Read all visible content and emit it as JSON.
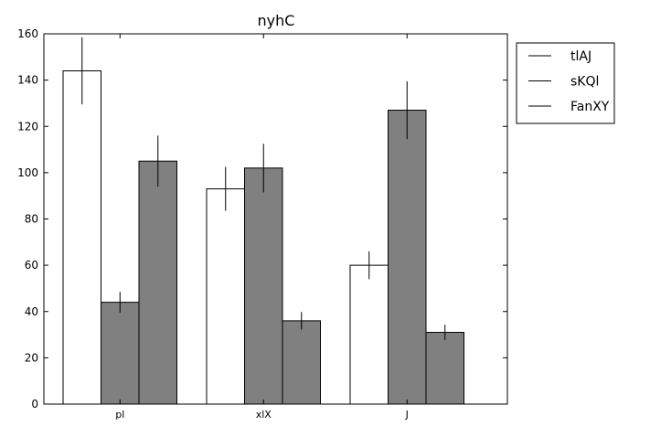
{
  "chart_data": {
    "type": "bar",
    "title": "nyhC",
    "xlabel": "",
    "ylabel": "",
    "categories": [
      "pl",
      "xlX",
      "J"
    ],
    "ylim": [
      0,
      160
    ],
    "yticks": [
      0,
      20,
      40,
      60,
      80,
      100,
      120,
      140,
      160
    ],
    "grid": false,
    "legend_position": "outside-top-right",
    "series": [
      {
        "name": "tlAJ",
        "values": [
          144,
          93,
          60
        ],
        "errors": [
          14.5,
          9.5,
          6
        ],
        "color": "#ffffff"
      },
      {
        "name": "sKQl",
        "values": [
          44,
          102,
          127
        ],
        "errors": [
          4.5,
          10.5,
          12.5
        ],
        "color": "#808080"
      },
      {
        "name": "FanXY",
        "values": [
          105,
          36,
          31
        ],
        "errors": [
          11,
          3.8,
          3.3
        ],
        "color": "#808080"
      }
    ]
  }
}
